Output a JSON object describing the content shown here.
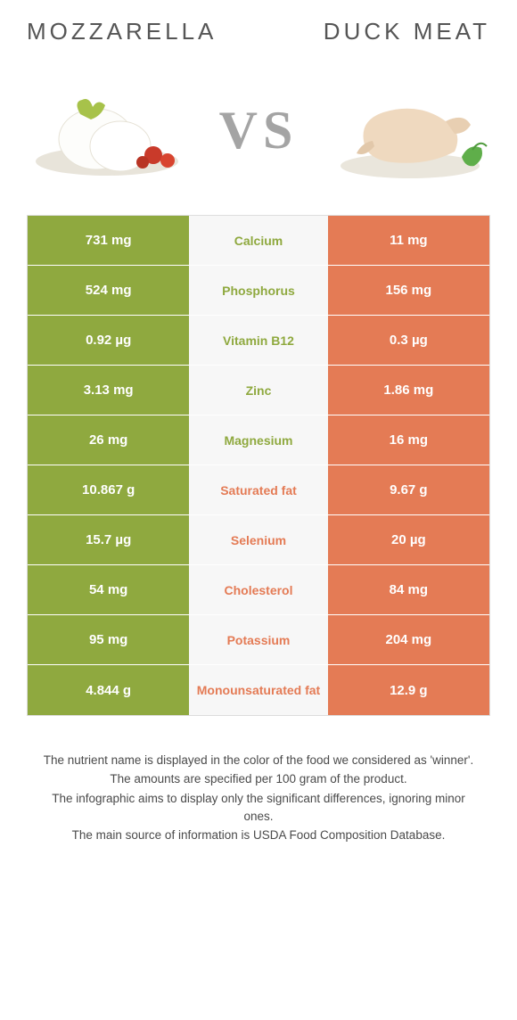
{
  "titles": {
    "left": "Mozzarella",
    "right": "Duck meat"
  },
  "vs": "VS",
  "colors": {
    "left": "#8fa93f",
    "right": "#e47b55",
    "mid_bg": "#f7f7f7",
    "border": "#dddddd",
    "title_text": "#555555",
    "vs_text": "#a4a4a4",
    "footer_text": "#4a4a4a"
  },
  "rows": [
    {
      "left": "731 mg",
      "label": "Calcium",
      "right": "11 mg",
      "winner": "left"
    },
    {
      "left": "524 mg",
      "label": "Phosphorus",
      "right": "156 mg",
      "winner": "left"
    },
    {
      "left": "0.92 µg",
      "label": "Vitamin B12",
      "right": "0.3 µg",
      "winner": "left"
    },
    {
      "left": "3.13 mg",
      "label": "Zinc",
      "right": "1.86 mg",
      "winner": "left"
    },
    {
      "left": "26 mg",
      "label": "Magnesium",
      "right": "16 mg",
      "winner": "left"
    },
    {
      "left": "10.867 g",
      "label": "Saturated fat",
      "right": "9.67 g",
      "winner": "right"
    },
    {
      "left": "15.7 µg",
      "label": "Selenium",
      "right": "20 µg",
      "winner": "right"
    },
    {
      "left": "54 mg",
      "label": "Cholesterol",
      "right": "84 mg",
      "winner": "right"
    },
    {
      "left": "95 mg",
      "label": "Potassium",
      "right": "204 mg",
      "winner": "right"
    },
    {
      "left": "4.844 g",
      "label": "Monounsaturated fat",
      "right": "12.9 g",
      "winner": "right"
    }
  ],
  "footer": [
    "The nutrient name is displayed in the color of the food we considered as 'winner'.",
    "The amounts are specified per 100 gram of the product.",
    "The infographic aims to display only the significant differences, ignoring minor ones.",
    "The main source of information is USDA Food Composition Database."
  ]
}
